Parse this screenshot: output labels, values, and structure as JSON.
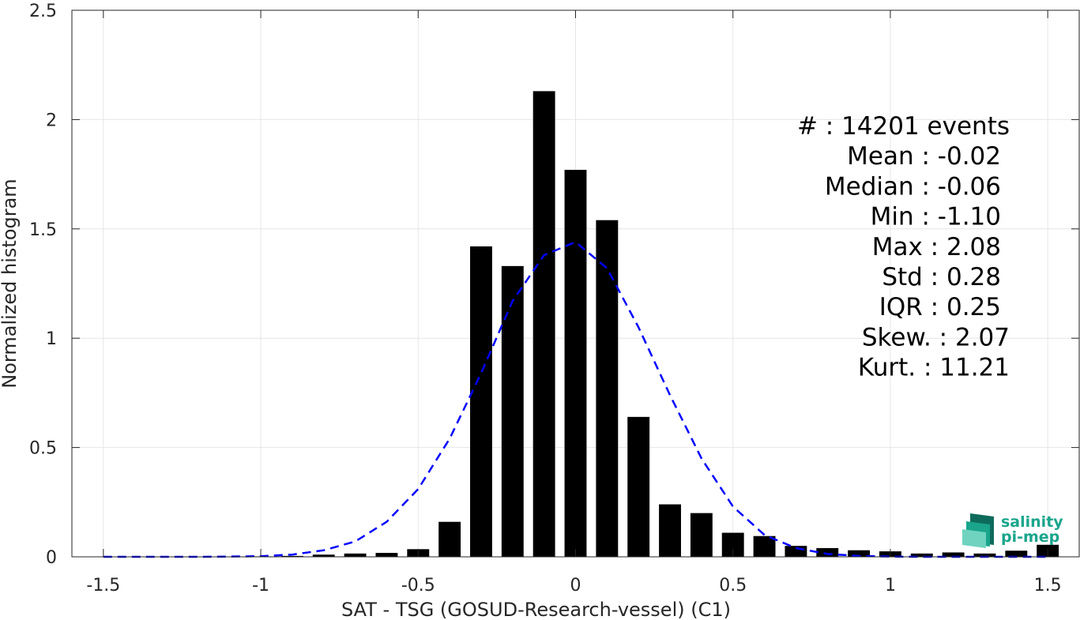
{
  "chart_data": {
    "type": "bar",
    "xlabel": "SAT - TSG (GOSUD-Research-vessel) (C1)",
    "ylabel": "Normalized histogram",
    "xlim": [
      -1.6,
      1.6
    ],
    "ylim": [
      0,
      2.5
    ],
    "xticks": [
      -1.5,
      -1,
      -0.5,
      0,
      0.5,
      1,
      1.5
    ],
    "xtick_labels": [
      "-1.5",
      "-1",
      "-0.5",
      "0",
      "0.5",
      "1",
      "1.5"
    ],
    "yticks": [
      0,
      0.5,
      1,
      1.5,
      2,
      2.5
    ],
    "ytick_labels": [
      "0",
      "0.5",
      "1",
      "1.5",
      "2",
      "2.5"
    ],
    "grid": true,
    "bar_color": "#000000",
    "bar_width": 0.07,
    "bars": {
      "x": [
        -1.5,
        -1.4,
        -1.3,
        -1.2,
        -1.1,
        -1.0,
        -0.9,
        -0.8,
        -0.7,
        -0.6,
        -0.5,
        -0.4,
        -0.3,
        -0.2,
        -0.1,
        0.0,
        0.1,
        0.2,
        0.3,
        0.4,
        0.5,
        0.6,
        0.7,
        0.8,
        0.9,
        1.0,
        1.1,
        1.2,
        1.3,
        1.4,
        1.5
      ],
      "y": [
        0.0,
        0.0,
        0.0,
        0.0,
        0.001,
        0.002,
        0.004,
        0.01,
        0.015,
        0.018,
        0.035,
        0.16,
        1.42,
        1.33,
        2.13,
        1.77,
        1.54,
        0.64,
        0.24,
        0.2,
        0.11,
        0.095,
        0.05,
        0.04,
        0.03,
        0.025,
        0.015,
        0.02,
        0.015,
        0.028,
        0.055
      ]
    },
    "fit_curve": {
      "color": "#0000ff",
      "style": "dashed",
      "x": [
        -1.5,
        -1.4,
        -1.3,
        -1.2,
        -1.1,
        -1.0,
        -0.9,
        -0.8,
        -0.7,
        -0.6,
        -0.5,
        -0.4,
        -0.3,
        -0.2,
        -0.1,
        0.0,
        0.1,
        0.2,
        0.3,
        0.4,
        0.5,
        0.6,
        0.7,
        0.8,
        0.9,
        1.0,
        1.1,
        1.2,
        1.3,
        1.4,
        1.5
      ],
      "y": [
        0.0,
        0.0,
        0.0,
        0.0,
        0.001,
        0.003,
        0.01,
        0.03,
        0.07,
        0.16,
        0.31,
        0.54,
        0.84,
        1.17,
        1.38,
        1.44,
        1.32,
        1.05,
        0.74,
        0.45,
        0.23,
        0.1,
        0.04,
        0.013,
        0.004,
        0.001,
        0.0,
        0.0,
        0.0,
        0.0,
        0.0
      ]
    },
    "stats": [
      "#  : 14201 events",
      "Mean : -0.02",
      "Median : -0.06",
      "Min : -1.10",
      "Max : 2.08",
      "Std : 0.28",
      "IQR : 0.25",
      "Skew. : 2.07",
      "Kurt. : 11.21"
    ],
    "stats_align": [
      "end",
      "end",
      "end",
      "end",
      "end",
      "end",
      "end",
      "end",
      "end"
    ]
  },
  "logo": {
    "line1": "salinity",
    "line2": "pi-mep",
    "color": "#1aa58c",
    "dark_color": "#0e6b5c"
  }
}
